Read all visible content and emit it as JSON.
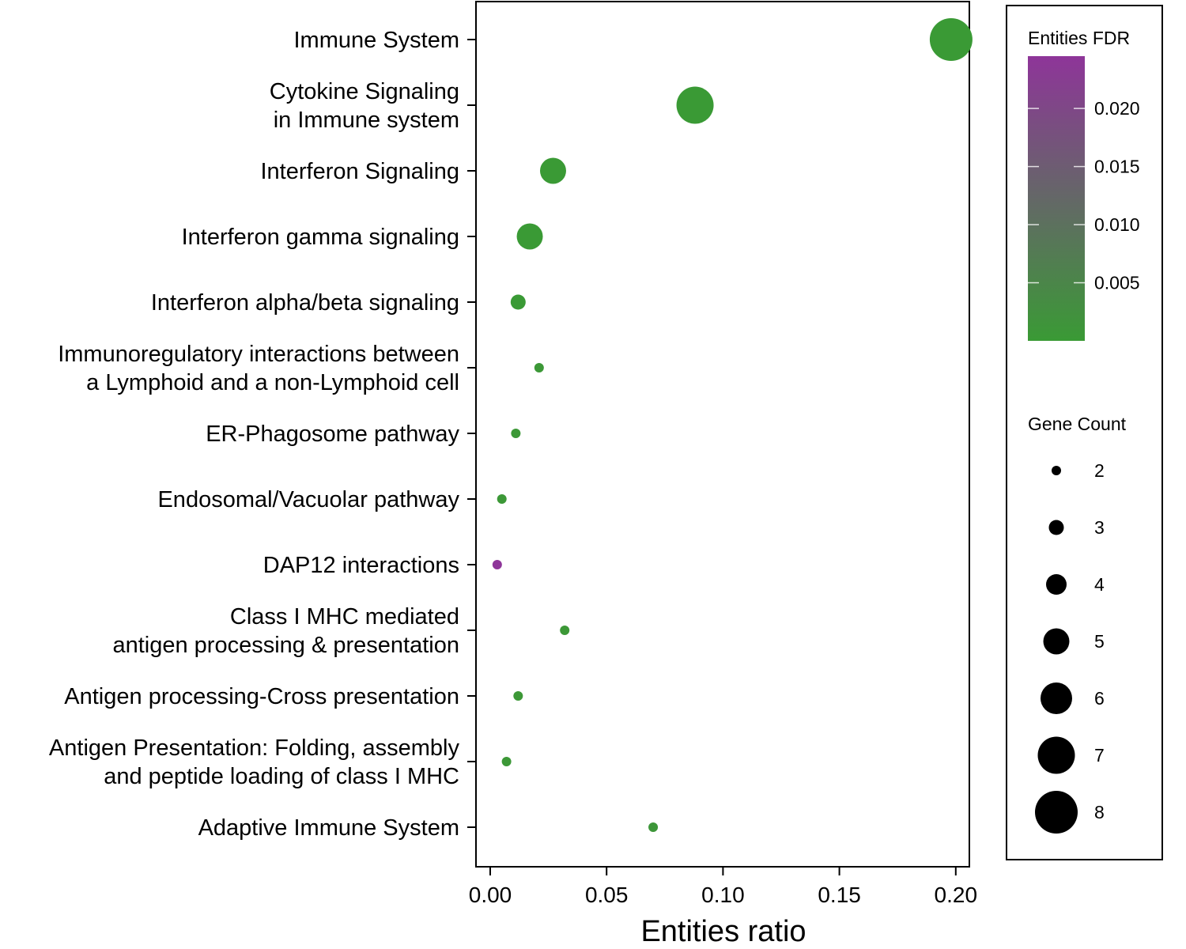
{
  "chart_data": {
    "type": "scatter",
    "xlabel": "Entities ratio",
    "ylabel": "",
    "xlim": [
      -0.005,
      0.208
    ],
    "xticks": [
      0.0,
      0.05,
      0.1,
      0.15,
      0.2
    ],
    "xtick_labels": [
      "0.00",
      "0.05",
      "0.10",
      "0.15",
      "0.20"
    ],
    "grid": false,
    "legend_placement": "right",
    "categories": [
      {
        "label_lines": [
          "Immune System"
        ],
        "x": 0.198,
        "gene_count": 8,
        "fdr": 0.0001
      },
      {
        "label_lines": [
          "Cytokine Signaling",
          "in Immune system"
        ],
        "x": 0.088,
        "gene_count": 7,
        "fdr": 0.0001
      },
      {
        "label_lines": [
          "Interferon Signaling"
        ],
        "x": 0.027,
        "gene_count": 5,
        "fdr": 0.0001
      },
      {
        "label_lines": [
          "Interferon gamma signaling"
        ],
        "x": 0.017,
        "gene_count": 5,
        "fdr": 0.0001
      },
      {
        "label_lines": [
          "Interferon alpha/beta signaling"
        ],
        "x": 0.012,
        "gene_count": 3,
        "fdr": 0.0001
      },
      {
        "label_lines": [
          "Immunoregulatory interactions between",
          "a Lymphoid and a non-Lymphoid cell"
        ],
        "x": 0.021,
        "gene_count": 2,
        "fdr": 0.0005
      },
      {
        "label_lines": [
          "ER-Phagosome pathway"
        ],
        "x": 0.011,
        "gene_count": 2,
        "fdr": 0.0005
      },
      {
        "label_lines": [
          "Endosomal/Vacuolar pathway"
        ],
        "x": 0.005,
        "gene_count": 2,
        "fdr": 0.0005
      },
      {
        "label_lines": [
          "DAP12 interactions"
        ],
        "x": 0.003,
        "gene_count": 2,
        "fdr": 0.0245
      },
      {
        "label_lines": [
          "Class I MHC mediated",
          "antigen processing & presentation"
        ],
        "x": 0.032,
        "gene_count": 2,
        "fdr": 0.0005
      },
      {
        "label_lines": [
          "Antigen processing-Cross presentation"
        ],
        "x": 0.012,
        "gene_count": 2,
        "fdr": 0.0005
      },
      {
        "label_lines": [
          "Antigen Presentation: Folding, assembly",
          "and peptide loading of class I MHC"
        ],
        "x": 0.007,
        "gene_count": 2,
        "fdr": 0.0005
      },
      {
        "label_lines": [
          "Adaptive Immune System"
        ],
        "x": 0.07,
        "gene_count": 2,
        "fdr": 0.001
      }
    ],
    "color_legend": {
      "title": "Entities FDR",
      "low_color": "#3a9a35",
      "high_color": "#8e3599",
      "range": [
        0.0,
        0.0245
      ],
      "ticks": [
        0.005,
        0.01,
        0.015,
        0.02
      ],
      "tick_labels": [
        "0.005",
        "0.010",
        "0.015",
        "0.020"
      ]
    },
    "size_legend": {
      "title": "Gene Count",
      "values": [
        2,
        3,
        4,
        5,
        6,
        7,
        8
      ],
      "labels": [
        "2",
        "3",
        "4",
        "5",
        "6",
        "7",
        "8"
      ]
    }
  }
}
